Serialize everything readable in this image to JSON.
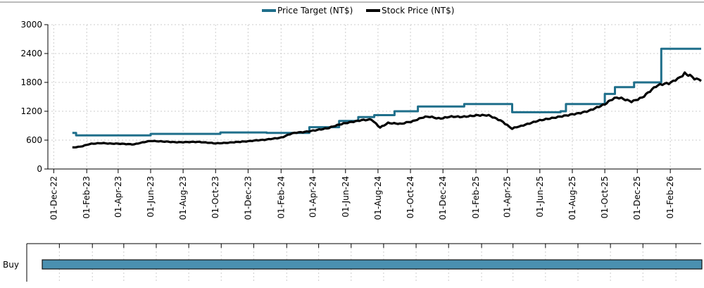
{
  "legend": {
    "target_label": "Price Target (NT$)",
    "price_label": "Stock Price (NT$)"
  },
  "rating": {
    "label": "Buy",
    "color": "#4a90b0",
    "border": "#111111",
    "start": "2023-01-01",
    "end": "2026-03-31"
  },
  "colors": {
    "target": "#1f6f8b",
    "price": "#000000",
    "grid": "#cccccc"
  },
  "chart_data": {
    "type": "line",
    "y_ticks": [
      0,
      600,
      1200,
      1800,
      2400,
      3000
    ],
    "ylim": [
      0,
      3000
    ],
    "xlim": [
      "2022-11-20",
      "2026-03-31"
    ],
    "x_ticks": [
      "2022-12-01",
      "2023-02-01",
      "2023-04-01",
      "2023-06-01",
      "2023-08-01",
      "2023-10-01",
      "2023-12-01",
      "2024-02-01",
      "2024-04-01",
      "2024-06-01",
      "2024-08-01",
      "2024-10-01",
      "2024-12-01",
      "2025-02-01",
      "2025-04-01",
      "2025-06-01",
      "2025-08-01",
      "2025-10-01",
      "2025-12-01",
      "2026-02-01"
    ],
    "x_tick_labels": [
      "01-Dec-22",
      "01-Feb-23",
      "01-Apr-23",
      "01-Jun-23",
      "01-Aug-23",
      "01-Oct-23",
      "01-Dec-23",
      "01-Feb-24",
      "01-Apr-24",
      "01-Jun-24",
      "01-Aug-24",
      "01-Oct-24",
      "01-Dec-24",
      "01-Feb-25",
      "01-Apr-25",
      "01-Jun-25",
      "01-Aug-25",
      "01-Oct-25",
      "01-Dec-25",
      "01-Feb-26"
    ],
    "grid": true,
    "legend_position": "top-center",
    "series": [
      {
        "name": "Price Target (NT$)",
        "step": true,
        "points": [
          [
            "2023-01-05",
            750
          ],
          [
            "2023-01-12",
            700
          ],
          [
            "2023-06-01",
            730
          ],
          [
            "2023-10-10",
            760
          ],
          [
            "2024-01-05",
            750
          ],
          [
            "2024-03-25",
            870
          ],
          [
            "2024-05-20",
            1000
          ],
          [
            "2024-06-25",
            1080
          ],
          [
            "2024-07-25",
            1120
          ],
          [
            "2024-09-01",
            1200
          ],
          [
            "2024-10-15",
            1300
          ],
          [
            "2025-01-10",
            1350
          ],
          [
            "2025-04-10",
            1180
          ],
          [
            "2025-07-10",
            1200
          ],
          [
            "2025-07-20",
            1350
          ],
          [
            "2025-10-01",
            1560
          ],
          [
            "2025-10-20",
            1700
          ],
          [
            "2025-11-25",
            1800
          ],
          [
            "2026-01-15",
            2500
          ],
          [
            "2026-03-31",
            2500
          ]
        ]
      },
      {
        "name": "Stock Price (NT$)",
        "step": false,
        "points": [
          [
            "2023-01-05",
            450
          ],
          [
            "2023-01-20",
            470
          ],
          [
            "2023-02-10",
            520
          ],
          [
            "2023-03-01",
            540
          ],
          [
            "2023-04-01",
            530
          ],
          [
            "2023-05-01",
            510
          ],
          [
            "2023-06-01",
            580
          ],
          [
            "2023-07-01",
            570
          ],
          [
            "2023-08-01",
            560
          ],
          [
            "2023-09-01",
            555
          ],
          [
            "2023-10-01",
            530
          ],
          [
            "2023-11-01",
            560
          ],
          [
            "2023-12-01",
            580
          ],
          [
            "2024-01-01",
            600
          ],
          [
            "2024-02-01",
            660
          ],
          [
            "2024-03-01",
            760
          ],
          [
            "2024-04-01",
            800
          ],
          [
            "2024-05-01",
            850
          ],
          [
            "2024-06-01",
            950
          ],
          [
            "2024-07-01",
            1020
          ],
          [
            "2024-07-20",
            1040
          ],
          [
            "2024-08-05",
            860
          ],
          [
            "2024-08-20",
            950
          ],
          [
            "2024-09-15",
            930
          ],
          [
            "2024-10-10",
            1020
          ],
          [
            "2024-10-25",
            1080
          ],
          [
            "2024-12-01",
            1060
          ],
          [
            "2025-01-10",
            1100
          ],
          [
            "2025-02-05",
            1130
          ],
          [
            "2025-02-25",
            1100
          ],
          [
            "2025-03-15",
            1020
          ],
          [
            "2025-04-01",
            920
          ],
          [
            "2025-04-10",
            830
          ],
          [
            "2025-05-01",
            920
          ],
          [
            "2025-06-01",
            1000
          ],
          [
            "2025-07-01",
            1060
          ],
          [
            "2025-08-01",
            1150
          ],
          [
            "2025-09-01",
            1200
          ],
          [
            "2025-10-01",
            1330
          ],
          [
            "2025-10-15",
            1450
          ],
          [
            "2025-11-01",
            1480
          ],
          [
            "2025-11-20",
            1420
          ],
          [
            "2025-12-10",
            1470
          ],
          [
            "2026-01-05",
            1700
          ],
          [
            "2026-01-25",
            1790
          ],
          [
            "2026-02-15",
            1850
          ],
          [
            "2026-02-28",
            2010
          ],
          [
            "2026-03-10",
            1950
          ],
          [
            "2026-03-31",
            1830
          ]
        ]
      }
    ]
  }
}
